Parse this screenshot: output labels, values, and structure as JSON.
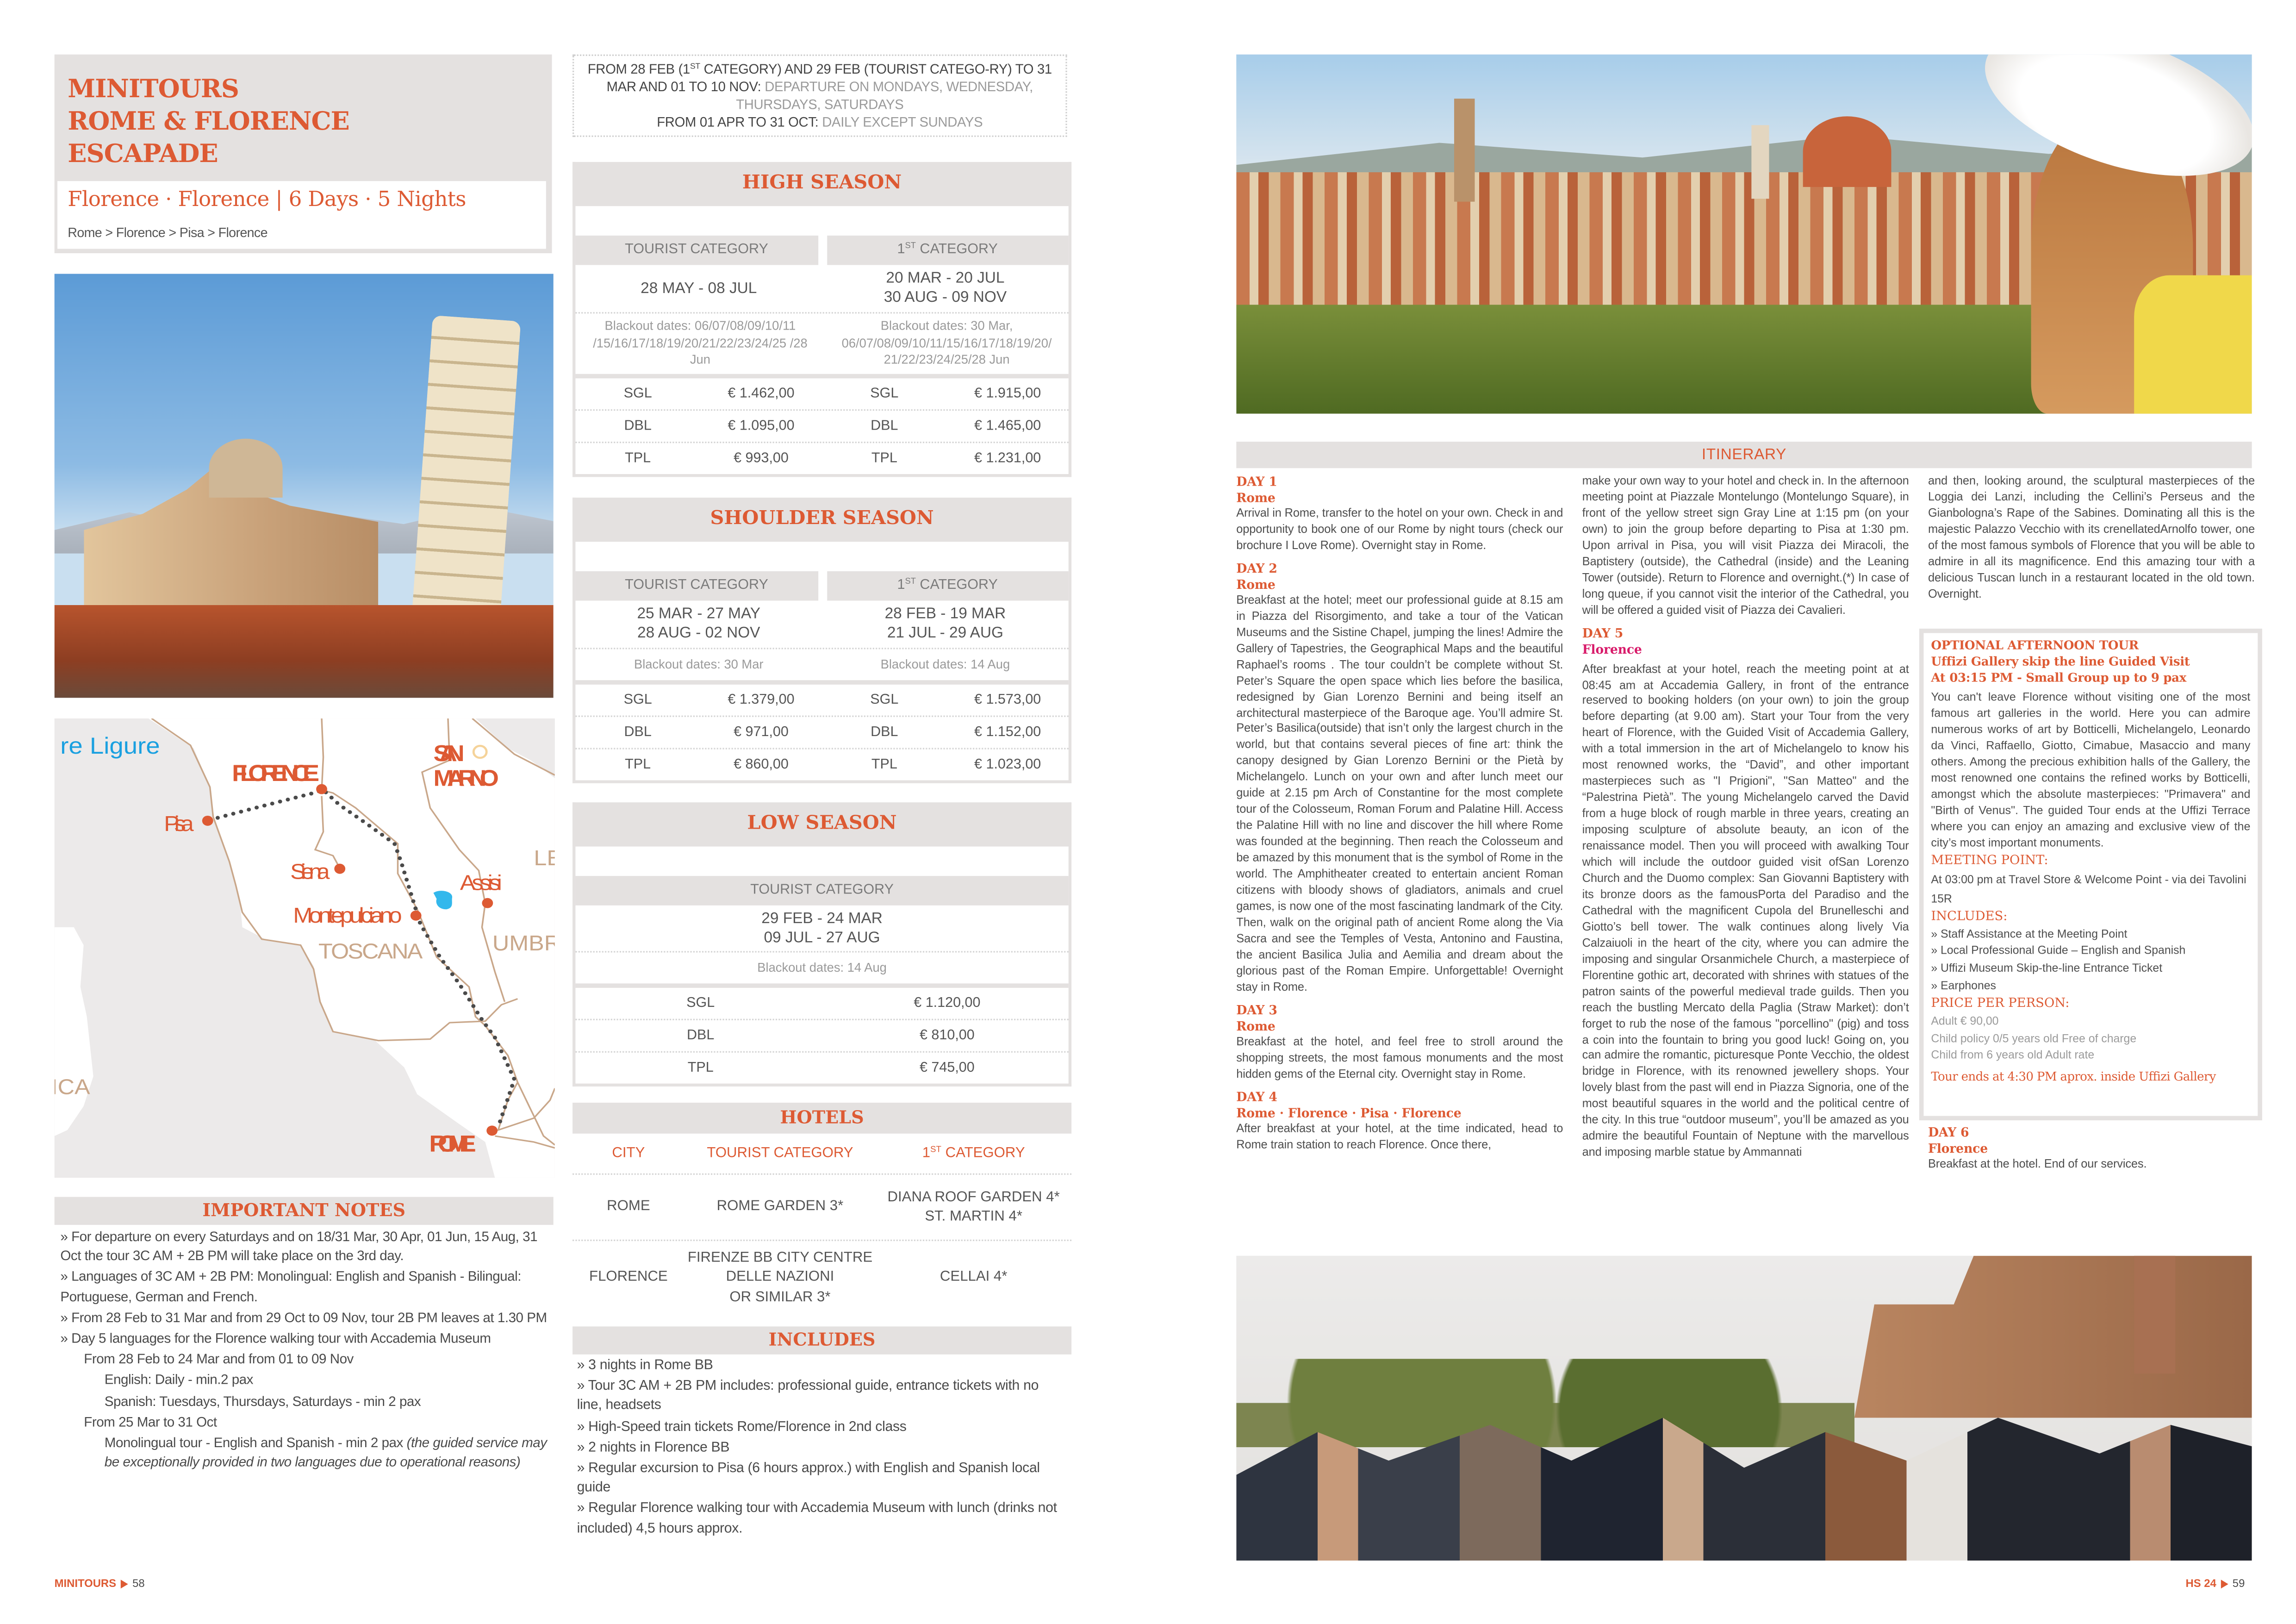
{
  "colors": {
    "accent": "#dd5a33",
    "band": "#e4e1e0",
    "text": "#4a4a4a",
    "day5_city": "#d81b6a"
  },
  "left_page": {
    "title_lines": [
      "MINITOURS",
      "ROME & FLORENCE",
      "ESCAPADE"
    ],
    "subtitle": "Florence · Florence | 6 Days · 5 Nights",
    "route": "Rome > Florence > Pisa > Florence",
    "map": {
      "sea": "re Ligure",
      "florence": "FLORENCE",
      "pisa": "Pisa",
      "siena": "Siena",
      "san_marino_1": "SAN",
      "san_marino_2": "MARINO",
      "assisi": "Assisi",
      "montepulciano": "Montepulciano",
      "toscana": "TOSCANA",
      "umbria": "UMBR",
      "le": "LE",
      "corsica": "ICA",
      "rome": "ROME"
    },
    "notes": {
      "title": "IMPORTANT NOTES",
      "items": [
        "» For departure on every Saturdays and on 18/31 Mar, 30 Apr, 01 Jun, 15 Aug, 31 Oct the tour 3C AM + 2B PM will take place on the 3rd day.",
        "» Languages of 3C AM + 2B PM: Monolingual: English and Spanish - Bilingual: Portuguese, German and French.",
        "» From 28 Feb to 31 Mar and from 29 Oct to 09 Nov, tour 2B PM leaves at 1.30 PM",
        "» Day 5 languages for the Florence walking tour with Accademia Museum"
      ],
      "sub1": "From 28 Feb to 24 Mar and from 01 to 09 Nov",
      "sub1_items": [
        "English: Daily - min.2 pax",
        "Spanish: Tuesdays, Thursdays, Saturdays - min 2 pax"
      ],
      "sub2": "From 25 Mar to 31 Oct",
      "sub2_item": "Monolingual tour - English and Spanish - min 2 pax",
      "sub2_item_italic": "(the guided service may be exceptionally provided in two languages due to operational reasons)"
    },
    "footer": {
      "brand": "MINITOURS",
      "page": "58"
    }
  },
  "departures": {
    "a_pre": "FROM 28 FEB (1",
    "a_sup": "ST",
    "a_post": " CATEGORY) AND 29 FEB (TOURIST CATEGO-RY) TO 31 MAR AND 01 TO 10 NOV:",
    "a_value": " DEPARTURE ON MONDAYS, WEDNESDAY, THURSDAYS, SATURDAYS",
    "b_label": "FROM 01 APR TO 31 OCT:",
    "b_value": " DAILY EXCEPT SUNDAYS"
  },
  "categories": {
    "tourist": "TOURIST CATEGORY",
    "first_num": "1",
    "first_sup": "ST",
    "first_rest": "CATEGORY"
  },
  "seasons": {
    "high": {
      "title": "HIGH SEASON",
      "tourist": {
        "dates": [
          "28 MAY - 08 JUL"
        ],
        "blackout": "Blackout dates: 06/07/08/09/10/11 /15/16/17/18/19/20/21/22/23/24/25 /28 Jun",
        "prices": [
          {
            "room": "SGL",
            "price": "€ 1.462,00"
          },
          {
            "room": "DBL",
            "price": "€ 1.095,00"
          },
          {
            "room": "TPL",
            "price": "€ 993,00"
          }
        ]
      },
      "first": {
        "dates": [
          "20 MAR - 20 JUL",
          "30 AUG - 09 NOV"
        ],
        "blackout": "Blackout dates: 30 Mar, 06/07/08/09/10/11/15/16/17/18/19/20/ 21/22/23/24/25/28 Jun",
        "prices": [
          {
            "room": "SGL",
            "price": "€ 1.915,00"
          },
          {
            "room": "DBL",
            "price": "€ 1.465,00"
          },
          {
            "room": "TPL",
            "price": "€ 1.231,00"
          }
        ]
      }
    },
    "shoulder": {
      "title": "SHOULDER SEASON",
      "tourist": {
        "dates": [
          "25 MAR - 27 MAY",
          "28 AUG - 02 NOV"
        ],
        "blackout": "Blackout dates: 30 Mar",
        "prices": [
          {
            "room": "SGL",
            "price": "€ 1.379,00"
          },
          {
            "room": "DBL",
            "price": "€ 971,00"
          },
          {
            "room": "TPL",
            "price": "€ 860,00"
          }
        ]
      },
      "first": {
        "dates": [
          "28 FEB - 19 MAR",
          "21 JUL - 29 AUG"
        ],
        "blackout": "Blackout dates: 14 Aug",
        "prices": [
          {
            "room": "SGL",
            "price": "€ 1.573,00"
          },
          {
            "room": "DBL",
            "price": "€ 1.152,00"
          },
          {
            "room": "TPL",
            "price": "€ 1.023,00"
          }
        ]
      }
    },
    "low": {
      "title": "LOW SEASON",
      "tourist": {
        "dates": [
          "29 FEB - 24 MAR",
          "09 JUL - 27 AUG"
        ],
        "blackout": "Blackout dates: 14 Aug",
        "prices": [
          {
            "room": "SGL",
            "price": "€ 1.120,00"
          },
          {
            "room": "DBL",
            "price": "€ 810,00"
          },
          {
            "room": "TPL",
            "price": "€ 745,00"
          }
        ]
      }
    }
  },
  "hotels": {
    "title": "HOTELS",
    "headers": {
      "city": "CITY",
      "tourist": "TOURIST CATEGORY"
    },
    "rows": [
      {
        "city": "ROME",
        "tourist": [
          "ROME GARDEN 3*"
        ],
        "first": [
          "DIANA ROOF GARDEN 4*",
          "ST. MARTIN 4*"
        ]
      },
      {
        "city": "FLORENCE",
        "tourist": [
          "FIRENZE BB CITY CENTRE",
          "DELLE NAZIONI",
          "OR SIMILAR 3*"
        ],
        "first": [
          "CELLAI 4*"
        ]
      }
    ]
  },
  "includes": {
    "title": "INCLUDES",
    "items": [
      "» 3 nights in Rome BB",
      "» Tour 3C AM + 2B PM includes: professional guide, entrance tickets with no line, headsets",
      "» High-Speed train tickets Rome/Florence in 2nd class",
      "» 2 nights in Florence BB",
      "» Regular excursion to Pisa (6 hours approx.) with English and Spanish local guide",
      "» Regular Florence walking tour with Accademia Museum with lunch (drinks not included) 4,5 hours approx."
    ]
  },
  "itinerary": {
    "title": "ITINERARY",
    "days": [
      {
        "day": "DAY 1",
        "city": "Rome",
        "text": "Arrival in Rome, transfer to the hotel on your own. Check in and opportunity to book one of our Rome by night tours (check our brochure I Love Rome). Overnight stay in Rome."
      },
      {
        "day": "DAY 2",
        "city": "Rome",
        "text": "Breakfast at the hotel; meet our professional guide at 8.15 am in Piazza del Risorgimento, and take a tour of the Vatican Museums and the Sistine Chapel, jumping the lines! Admire the Gallery of Tapestries, the Geographical Maps and the beautiful Raphael’s rooms . The tour couldn’t be complete without St. Peter’s Square the open space which lies before the basilica, redesigned by Gian Lorenzo Bernini and being itself an architectural masterpiece of the Baroque age. You’ll admire St. Peter’s Basilica(outside) that isn’t only the largest church in the world, but that contains several pieces of fine art: think the canopy designed by Gian Lorenzo Bernini or the Pietà by Michelangelo. Lunch on your own and after lunch meet our guide at 2.15 pm Arch of Constantine for the most complete tour of the Colosseum, Roman Forum and Palatine Hill. Access the Palatine Hill with no line and discover the hill where Rome was founded at the beginning. Then reach the Colosseum and be amazed by this monument that is the symbol of Rome in the world. The Amphitheater created to entertain ancient Roman citizens with bloody shows of gladiators, animals and cruel games, is now one of the most fascinating landmark of the City. Then, walk on the original path of ancient Rome along the Via Sacra and see the Temples of Vesta, Antonino and Faustina, the ancient Basilica Julia and Aemilia and dream about the glorious past of the Roman Empire. Unforgettable! Overnight stay in Rome."
      },
      {
        "day": "DAY 3",
        "city": "Rome",
        "text": "Breakfast at the hotel, and feel free to stroll around the shopping streets, the most famous monuments and the most hidden gems of the Eternal city. Overnight stay in Rome."
      },
      {
        "day": "DAY 4",
        "city": "Rome · Florence · Pisa · Florence",
        "text_parts": [
          "After breakfast at your hotel, at the time indicated, head to Rome train station to reach Florence. Once there,",
          "make your own way to your hotel and check in. In the afternoon meeting point at Piazzale Montelungo (Montelungo Square), in front of the yellow street sign Gray Line at 1:15 pm (on your own) to join the group before departing to Pisa at 1:30 pm. Upon arrival in Pisa, you will visit Piazza dei Miracoli, the Baptistery (outside), the Cathedral (inside) and the Leaning Tower (outside). Return to Florence and overnight.(*) In case of long queue, if you cannot visit the interior of the Cathedral, you will be offered a guided visit of Piazza dei Cavalieri."
        ]
      },
      {
        "day": "DAY 5",
        "city": "Florence",
        "text_parts": [
          "After breakfast at your hotel, reach the meeting point at at 08:45 am at Accademia Gallery, in front of the entrance reserved to booking holders (on your own) to join the group before departing (at 9.00 am). Start your Tour from the very heart of Florence, with the Guided Visit of Accademia Gallery, with a total immersion in the art of Michelangelo to know his most renowned works, the “David”, and other important masterpieces such as \"I Prigioni\", \"San Matteo\" and the “Palestrina Pietà”. The young Michelangelo carved the David from a huge block of rough marble in three years, creating an imposing sculpture of absolute beauty, an icon of the renaissance model. Then you will proceed with awalking Tour which will include the outdoor guided visit ofSan Lorenzo Church and the Duomo complex: San Giovanni Baptistery with its bronze doors as the famousPorta del Paradiso and the Cathedral with the magnificent Cupola del Brunelleschi and Giotto’s bell tower. The walk continues along lively Via Calzaiuoli in the heart of the city, where you can admire the imposing and singular Orsanmichele Church, a masterpiece of Florentine gothic art, decorated with shrines with statues of the patron saints of the powerful medieval trade guilds. Then you reach the bustling Mercato della Paglia (Straw Market): don’t forget to rub the nose of the famous \"porcellino\" (pig) and toss a coin into the fountain to bring you good luck! Going on, you can admire the romantic, picturesque Ponte Vecchio, the oldest bridge in Florence, with its renowned jewellery shops. Your lovely blast from the past will end in Piazza Signoria, one of the most beautiful squares in the world and the political centre of the city. In this true “outdoor museum”, you’ll be amazed as you admire the beautiful Fountain of Neptune with the marvellous and imposing marble statue by Ammannati",
          "and then, looking around, the sculptural masterpieces of the Loggia dei Lanzi, including the Cellini’s Perseus and the Gianbologna’s Rape of the Sabines. Dominating all this is the majestic Palazzo Vecchio with its crenellatedArnolfo tower, one of the most famous symbols of Florence that you will be able to admire in all its magnificence. End this amazing tour with a delicious Tuscan lunch in a restaurant located in the old town. Overnight."
        ]
      },
      {
        "day": "DAY 6",
        "city": "Florence",
        "text": "Breakfast at the hotel. End of our services."
      }
    ]
  },
  "optional_tour": {
    "title": "OPTIONAL AFTERNOON TOUR",
    "subtitle1": "Uffizi Gallery skip the line Guided Visit",
    "subtitle2": "At 03:15 PM - Small Group up to 9 pax",
    "description": "You can't leave Florence without visiting one of the most famous art galleries in the world. Here you can admire numerous works of art by Botticelli, Michelangelo, Leonardo da Vinci, Raffaello, Giotto, Cimabue, Masaccio and many others. Among the precious exhibition halls of the Gallery, the most renowned one contains the refined works by Botticelli, amongst which the absolute masterpieces: \"Primavera\" and \"Birth of Venus\". The guided Tour ends at the Uffizi Terrace where you can enjoy an amazing and exclusive view of the city’s most important monuments.",
    "meeting_label": "MEETING POINT:",
    "meeting_text": "At 03:00 pm at Travel Store & Welcome Point - via dei Tavolini 15R",
    "includes_label": "INCLUDES:",
    "includes": [
      "»  Staff Assistance at the Meeting Point",
      "»  Local Professional Guide – English and Spanish",
      "»  Uffizi Museum Skip-the-line Entrance Ticket",
      "»  Earphones"
    ],
    "price_label": "PRICE PER PERSON:",
    "prices": [
      "Adult € 90,00",
      "Child policy 0/5 years old Free of charge",
      "Child from 6 years old Adult rate"
    ],
    "ends": "Tour ends at 4:30 PM aprox. inside Uffizi Gallery"
  },
  "right_footer": {
    "brand": "HS 24",
    "page": "59"
  }
}
